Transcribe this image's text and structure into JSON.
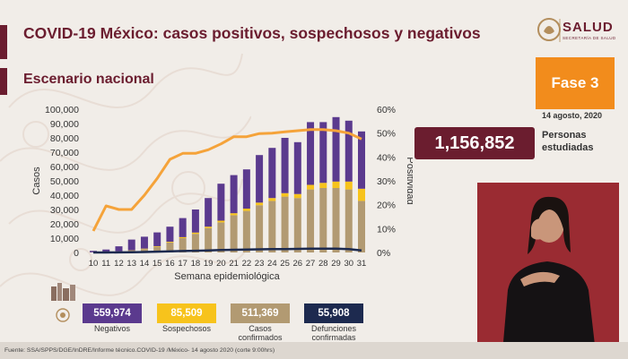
{
  "header": {
    "title": "COVID-19 México: casos positivos, sospechosos y negativos",
    "subtitle": "Escenario nacional"
  },
  "logo": {
    "word": "SALUD",
    "sub": "SECRETARÍA DE SALUD"
  },
  "phase": {
    "label": "Fase 3",
    "date": "14 agosto, 2020"
  },
  "people": {
    "value": "1,156,852",
    "label_line1": "Personas",
    "label_line2": "estudiadas"
  },
  "stats": [
    {
      "value": "559,974",
      "label_line1": "Negativos",
      "label_line2": "",
      "color": "#5b3a8e"
    },
    {
      "value": "85,509",
      "label_line1": "Sospechosos",
      "label_line2": "",
      "color": "#f7c31c"
    },
    {
      "value": "511,369",
      "label_line1": "Casos",
      "label_line2": "confirmados",
      "color": "#b29a72"
    },
    {
      "value": "55,908",
      "label_line1": "Defunciones",
      "label_line2": "confirmadas",
      "color": "#1d2a4f"
    }
  ],
  "source": "Fuente: SSA/SPPS/DGE/InDRE/Informe técnico.COVID-19 /México- 14 agosto 2020 (corte 9:00hrs)",
  "chart_data": {
    "type": "bar",
    "xlabel": "Semana epidemiológica",
    "ylabel": "Casos",
    "y2label": "Positividad",
    "categories": [
      "10",
      "11",
      "12",
      "13",
      "14",
      "15",
      "16",
      "17",
      "18",
      "19",
      "20",
      "21",
      "22",
      "23",
      "24",
      "25",
      "26",
      "27",
      "28",
      "29",
      "30",
      "31"
    ],
    "ylim": [
      0,
      100000
    ],
    "y2lim": [
      0,
      60
    ],
    "yticks": [
      "0",
      "10,000",
      "20,000",
      "30,000",
      "40,000",
      "50,000",
      "60,000",
      "70,000",
      "80,000",
      "90,000",
      "100,000"
    ],
    "y2ticks": [
      "0%",
      "10%",
      "20%",
      "30%",
      "40%",
      "50%",
      "60%"
    ],
    "series": [
      {
        "name": "Casos confirmados",
        "kind": "bar-stack",
        "color": "#b29a72",
        "values": [
          100,
          300,
          700,
          1300,
          2400,
          4000,
          7000,
          10000,
          13000,
          17000,
          21000,
          26000,
          29000,
          33000,
          36000,
          39000,
          38000,
          44000,
          45000,
          45000,
          44000,
          36000
        ]
      },
      {
        "name": "Sospechosos",
        "kind": "bar-stack",
        "color": "#f7c31c",
        "values": [
          20,
          50,
          100,
          200,
          300,
          400,
          500,
          700,
          900,
          1000,
          1200,
          1400,
          1600,
          1800,
          2000,
          2400,
          2800,
          3200,
          3600,
          4500,
          5500,
          8500
        ]
      },
      {
        "name": "Negativos",
        "kind": "bar-stack",
        "color": "#5b3a8e",
        "values": [
          1000,
          1700,
          3500,
          7500,
          8300,
          9600,
          10500,
          13300,
          16100,
          20000,
          25800,
          26600,
          27400,
          33200,
          35000,
          38600,
          36200,
          43800,
          42400,
          45000,
          42500,
          40000
        ]
      },
      {
        "name": "Defunciones confirmadas",
        "kind": "line",
        "axis": "left",
        "color": "#1d2a4f",
        "values": [
          0,
          20,
          50,
          150,
          300,
          550,
          800,
          1000,
          1200,
          1400,
          1700,
          1900,
          2000,
          2200,
          2300,
          2400,
          2500,
          2600,
          2700,
          2600,
          2400,
          1400
        ]
      },
      {
        "name": "Positividad",
        "kind": "line",
        "axis": "right",
        "color": "#f5a33a",
        "values": [
          9,
          19.5,
          18,
          18,
          24,
          31,
          39,
          41.5,
          41.5,
          43,
          45.5,
          48.5,
          48.5,
          49.8,
          50,
          50.5,
          51,
          51.5,
          51.5,
          51,
          50,
          47.5
        ]
      }
    ]
  }
}
